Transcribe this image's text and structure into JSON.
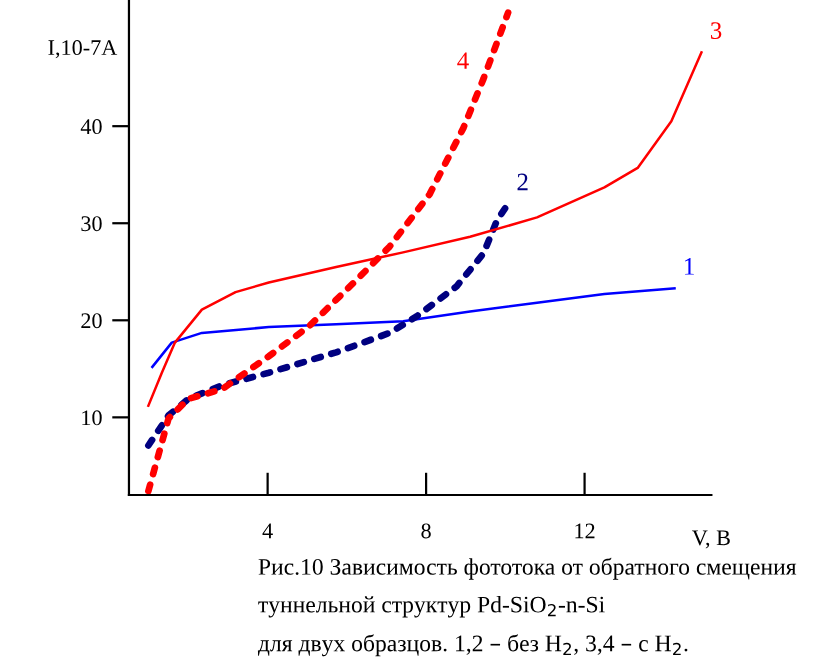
{
  "chart_data": {
    "type": "line",
    "xlabel": "V, B",
    "ylabel": "I,10-7A",
    "xlim": [
      0.5,
      15.2
    ],
    "ylim": [
      2,
      53
    ],
    "xticks": [
      4,
      8,
      12
    ],
    "yticks": [
      10,
      20,
      30,
      40
    ],
    "grid": false,
    "legend": false,
    "marker": "none",
    "series": [
      {
        "name": "1",
        "color": "#0000ff",
        "line_style": "solid",
        "x": [
          1.09,
          1.58,
          2.34,
          4.03,
          5.73,
          7.42,
          9.11,
          10.8,
          12.5,
          14.27
        ],
        "values": [
          15.2,
          17.7,
          18.7,
          19.3,
          19.6,
          19.9,
          20.9,
          21.8,
          22.7,
          23.3
        ]
      },
      {
        "name": "2",
        "color": "#000080",
        "line_style": "dotted",
        "x": [
          0.99,
          1.5,
          2.0,
          2.85,
          4.03,
          5.73,
          7.08,
          7.76,
          8.77,
          9.45,
          9.79,
          10.07
        ],
        "values": [
          7.1,
          10.2,
          11.9,
          13.3,
          14.6,
          16.7,
          18.7,
          20.4,
          23.5,
          26.9,
          30.3,
          32.0
        ]
      },
      {
        "name": "3",
        "color": "#ff0000",
        "line_style": "solid",
        "x": [
          0.99,
          1.33,
          1.66,
          2.34,
          3.19,
          4.03,
          5.73,
          7.42,
          9.11,
          10.8,
          12.5,
          13.34,
          14.19,
          14.95
        ],
        "values": [
          11.2,
          14.6,
          17.7,
          21.1,
          22.9,
          23.9,
          25.5,
          27.0,
          28.6,
          30.6,
          33.7,
          35.7,
          40.5,
          47.6
        ]
      },
      {
        "name": "4",
        "color": "#ff0000",
        "line_style": "dotted",
        "x": [
          0.99,
          1.5,
          2.0,
          2.85,
          4.03,
          5.05,
          6.23,
          7.08,
          8.09,
          8.94,
          9.45,
          10.07
        ],
        "values": [
          2.4,
          9.9,
          11.9,
          12.9,
          16.3,
          19.4,
          24.1,
          27.6,
          33.0,
          39.8,
          44.9,
          51.7
        ]
      }
    ],
    "annotations": [
      "Рис.10 Зависимость фототока от обратного смещения",
      "туннельной структур Pd-SiO$_{2}$-n-Si",
      "для двух образцов. 1,2 – без H$_{2}$, 3,4 – с H$_{2}$."
    ]
  }
}
